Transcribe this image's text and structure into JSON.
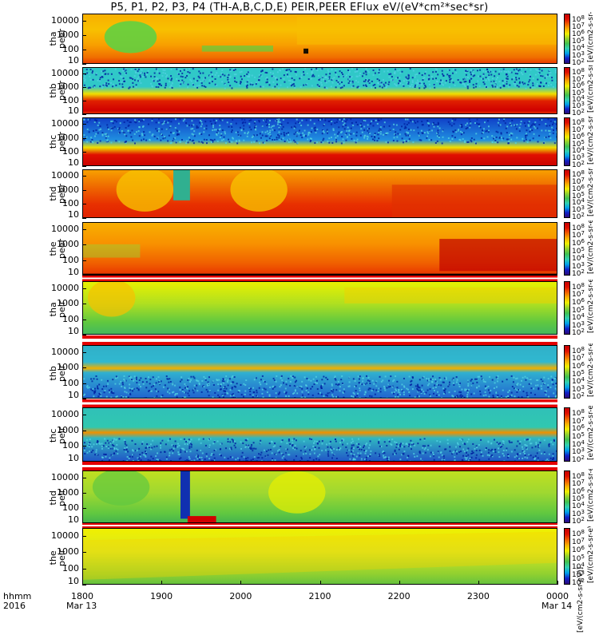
{
  "title": "P5, P1, P2, P3, P4 (TH-A,B,C,D,E) PEIR,PEER EFlux eV/(eV*cm²*sec*sr)",
  "colors": {
    "spectrum": [
      "#2d0a7a",
      "#1020c8",
      "#00a0e8",
      "#30d0b0",
      "#40c050",
      "#90d030",
      "#f0f000",
      "#f8b000",
      "#f06000",
      "#e01000",
      "#c80000"
    ],
    "stripe_red": "#e40000",
    "stripe_white": "#ffffff"
  },
  "x_axis": {
    "label_rows": [
      "hhmm",
      "2016"
    ],
    "ticks": [
      "1800",
      "1900",
      "2000",
      "2100",
      "2200",
      "2300",
      "0000"
    ],
    "start_date": "Mar 13",
    "end_date": "Mar 14"
  },
  "colorbar_label": "[eV/(cm2-s-sr-eV)]",
  "chart_data": {
    "type": "heatmap",
    "title": "P5, P1, P2, P3, P4 (TH-A,B,C,D,E) PEIR,PEER EFlux eV/(eV*cm²*sec*sr)",
    "x": {
      "unit": "hhmm",
      "range": [
        "1800",
        "0000"
      ],
      "ticks": [
        "1800",
        "1900",
        "2000",
        "2100",
        "2200",
        "2300",
        "0000"
      ]
    },
    "panels": [
      {
        "probe": "tha",
        "species": "peer",
        "ylabel": "tha\npeer",
        "yticks": [
          "10",
          "100",
          "1000",
          "10000"
        ],
        "ylim": [
          10,
          30000
        ],
        "scale": "log",
        "colorbar_ticks": [
          "10^2",
          "10^3",
          "10^4",
          "10^5",
          "10^6",
          "10^7",
          "10^8"
        ]
      },
      {
        "probe": "thb",
        "species": "peer",
        "ylabel": "thb\npeer",
        "yticks": [
          "10",
          "100",
          "1000",
          "10000"
        ],
        "ylim": [
          10,
          30000
        ],
        "scale": "log",
        "colorbar_ticks": [
          "10^2",
          "10^3",
          "10^4",
          "10^5",
          "10^6",
          "10^7",
          "10^8"
        ]
      },
      {
        "probe": "thc",
        "species": "peer",
        "ylabel": "thc\npeer",
        "yticks": [
          "10",
          "100",
          "1000",
          "10000"
        ],
        "ylim": [
          10,
          30000
        ],
        "scale": "log",
        "colorbar_ticks": [
          "10^2",
          "10^3",
          "10^4",
          "10^5",
          "10^6",
          "10^7",
          "10^8"
        ]
      },
      {
        "probe": "thd",
        "species": "peer",
        "ylabel": "thd\npeer",
        "yticks": [
          "10",
          "100",
          "1000",
          "10000"
        ],
        "ylim": [
          10,
          30000
        ],
        "scale": "log",
        "colorbar_ticks": [
          "10^2",
          "10^3",
          "10^4",
          "10^5",
          "10^6",
          "10^7",
          "10^8"
        ]
      },
      {
        "probe": "the",
        "species": "peer",
        "ylabel": "the\npeer",
        "yticks": [
          "10",
          "100",
          "1000",
          "10000"
        ],
        "ylim": [
          10,
          30000
        ],
        "scale": "log",
        "colorbar_ticks": [
          "10^2",
          "10^3",
          "10^4",
          "10^5",
          "10^6",
          "10^7",
          "10^8"
        ]
      },
      {
        "probe": "tha",
        "species": "peir",
        "ylabel": "tha\npeir",
        "yticks": [
          "10",
          "100",
          "1000",
          "10000"
        ],
        "ylim": [
          10,
          30000
        ],
        "scale": "log",
        "colorbar_ticks": [
          "10^2",
          "10^3",
          "10^4",
          "10^5",
          "10^6",
          "10^7",
          "10^8"
        ]
      },
      {
        "probe": "thb",
        "species": "peir",
        "ylabel": "thb\npeir",
        "yticks": [
          "10",
          "100",
          "1000",
          "10000"
        ],
        "ylim": [
          10,
          30000
        ],
        "scale": "log",
        "colorbar_ticks": [
          "10^2",
          "10^3",
          "10^4",
          "10^5",
          "10^6",
          "10^7",
          "10^8"
        ]
      },
      {
        "probe": "thc",
        "species": "peir",
        "ylabel": "thc\npeir",
        "yticks": [
          "10",
          "100",
          "1000",
          "10000"
        ],
        "ylim": [
          10,
          30000
        ],
        "scale": "log",
        "colorbar_ticks": [
          "10^2",
          "10^3",
          "10^4",
          "10^5",
          "10^6",
          "10^7",
          "10^8"
        ]
      },
      {
        "probe": "thd",
        "species": "peir",
        "ylabel": "thd\npeir",
        "yticks": [
          "10",
          "100",
          "1000",
          "10000"
        ],
        "ylim": [
          10,
          30000
        ],
        "scale": "log",
        "colorbar_ticks": [
          "10^2",
          "10^3",
          "10^4",
          "10^5",
          "10^6",
          "10^7",
          "10^8"
        ]
      },
      {
        "probe": "the",
        "species": "peir",
        "ylabel": "the\npeir",
        "yticks": [
          "10",
          "100",
          "1000",
          "10000"
        ],
        "ylim": [
          10,
          30000
        ],
        "scale": "log",
        "colorbar_ticks": [
          "10^2",
          "10^3",
          "10^4",
          "10^5",
          "10^6",
          "10^7",
          "10^8"
        ]
      }
    ]
  }
}
